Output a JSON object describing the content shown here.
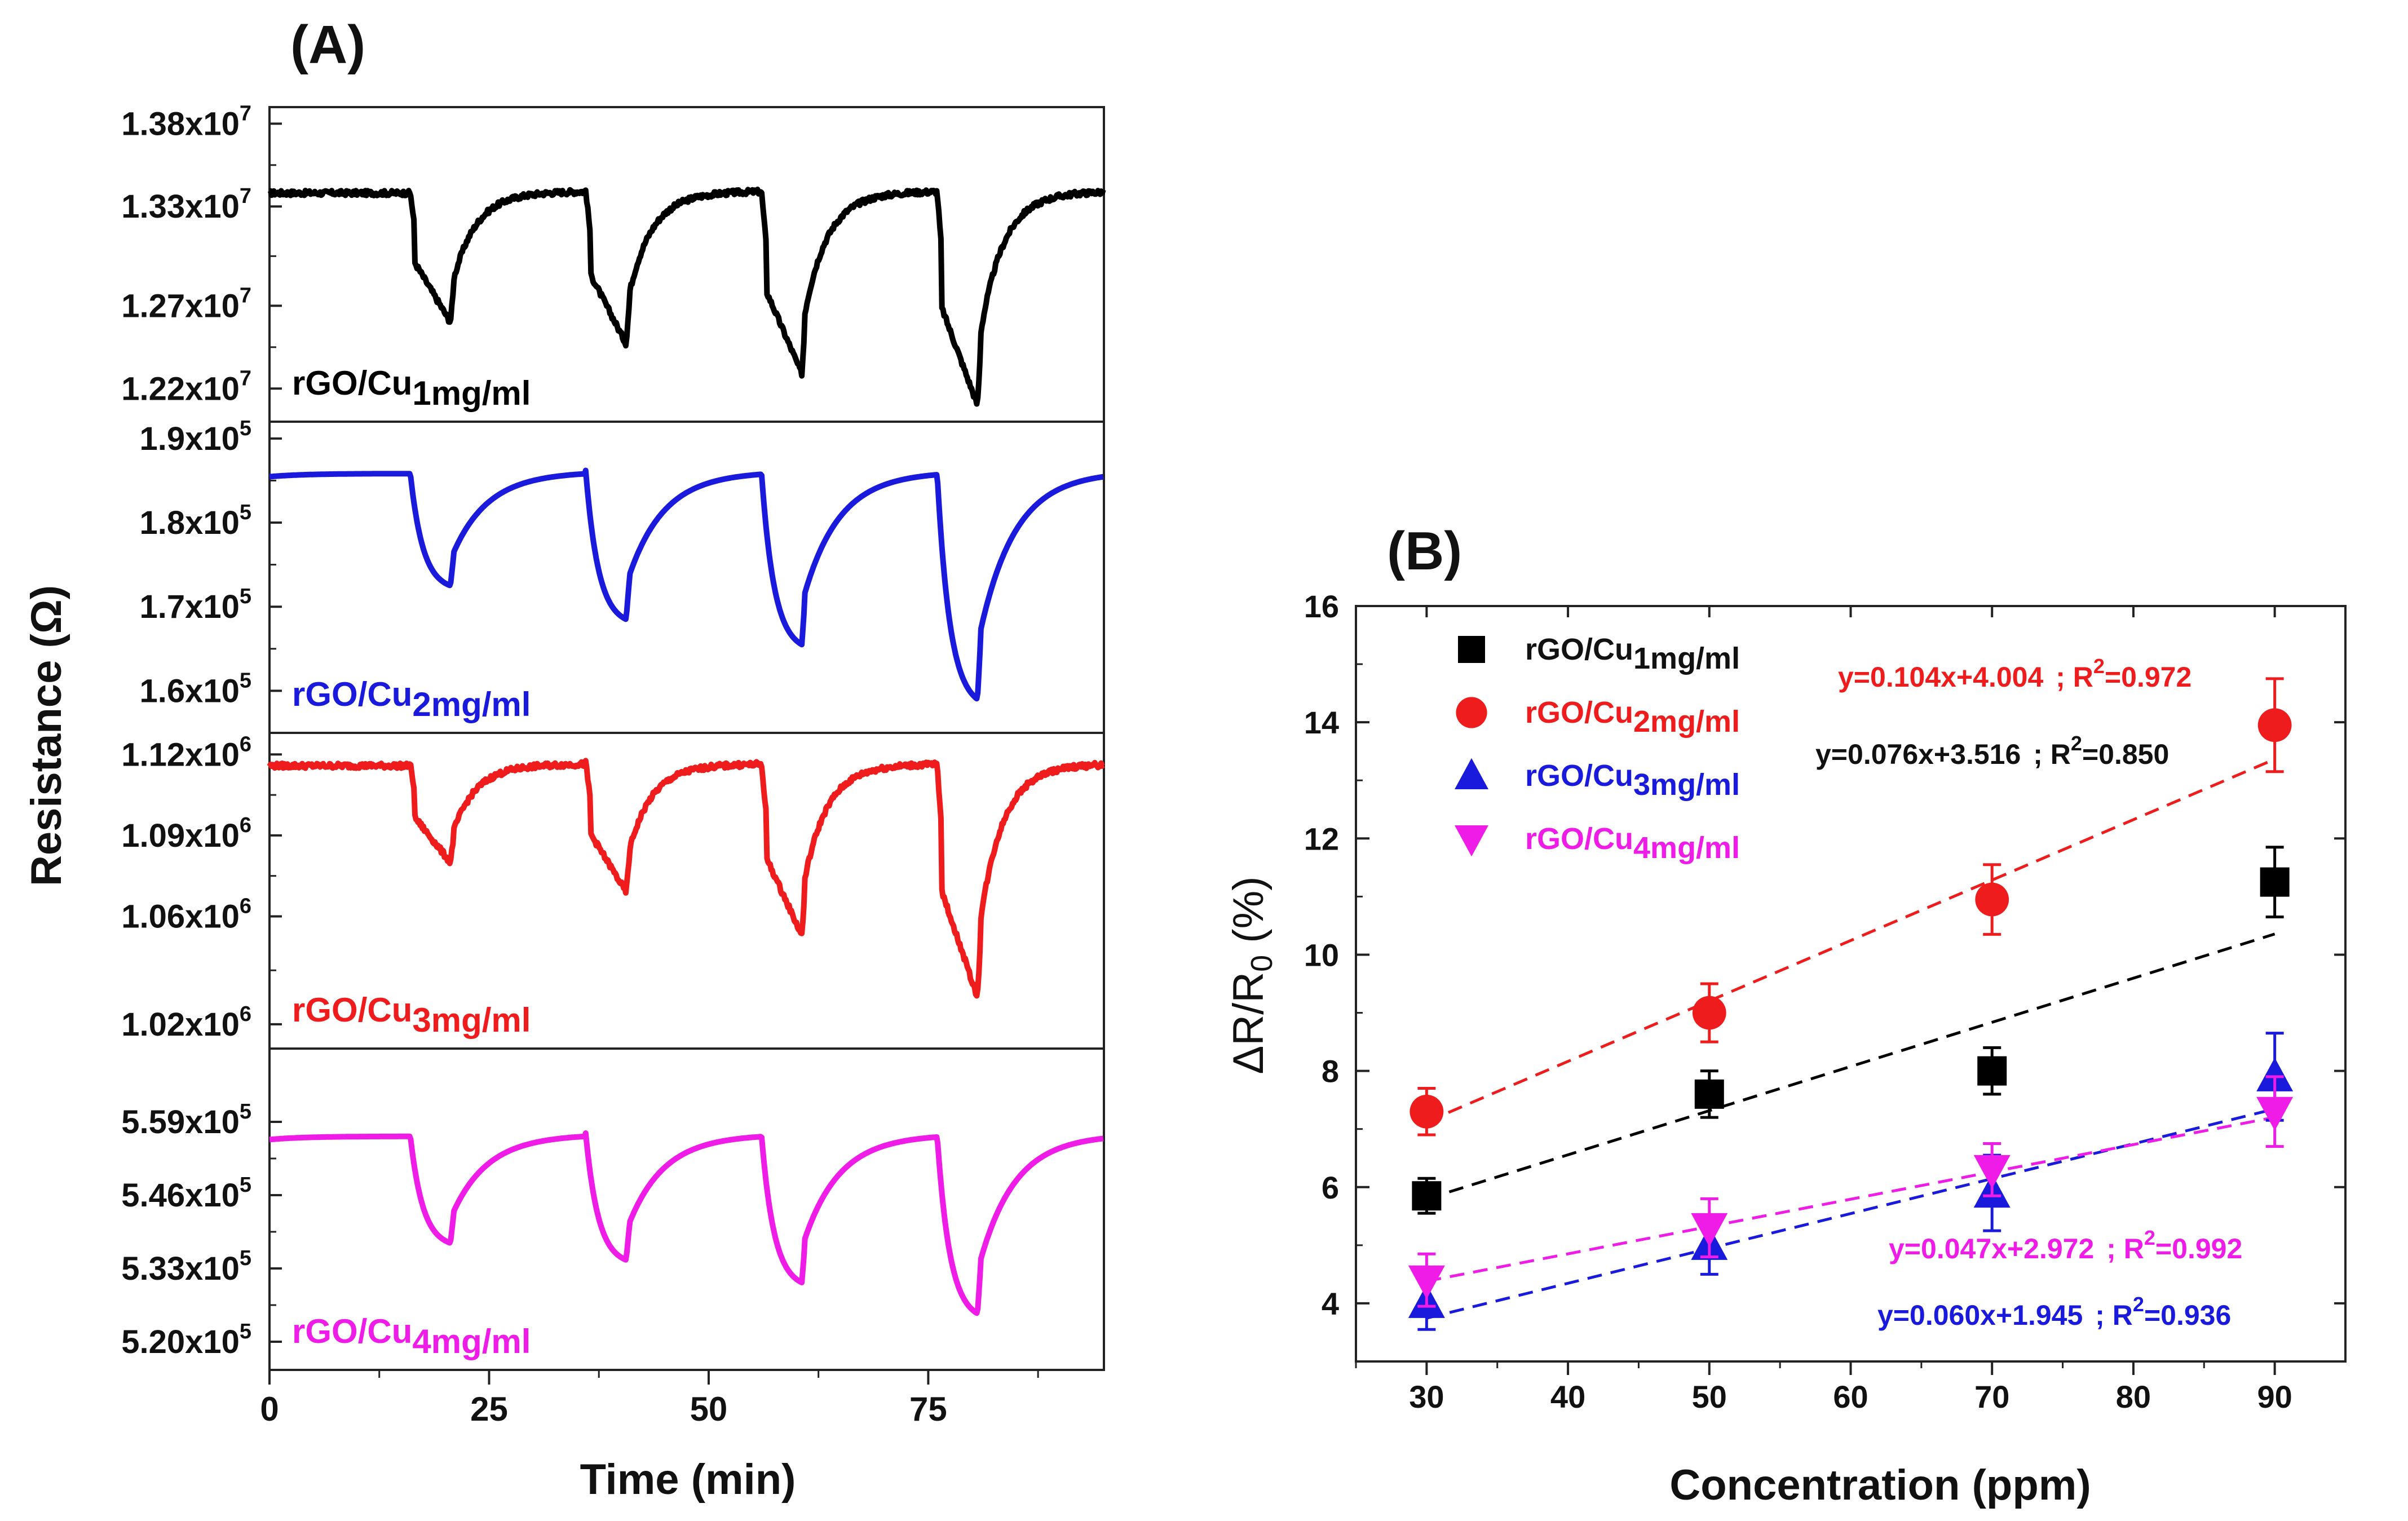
{
  "chart_data": [
    {
      "panel_label": "(A)",
      "type": "line",
      "xlabel": "Time (min)",
      "ylabel": "Resistance (Ω)",
      "xlim": [
        0,
        95
      ],
      "x_ticks": [
        "0",
        "25",
        "50",
        "75"
      ],
      "x_tick_values": [
        0,
        25,
        50,
        75
      ],
      "pulse_starts_min": [
        16,
        36,
        56,
        76
      ],
      "subplots": [
        {
          "name": "rGO/Cu1mg/ml",
          "label_main": "rGO/Cu",
          "label_sub": "1mg/ml",
          "color": "#000000",
          "ylim": [
            12000000,
            13900000
          ],
          "y_ticks": [
            {
              "m": "1.38x10",
              "e": "7",
              "v": 13800000
            },
            {
              "m": "1.33x10",
              "e": "7",
              "v": 13300000
            },
            {
              "m": "1.27x10",
              "e": "7",
              "v": 12700000
            },
            {
              "m": "1.22x10",
              "e": "7",
              "v": 12200000
            }
          ],
          "baseline": 13400000,
          "minima": [
            12600000,
            12470000,
            12290000,
            12100000
          ],
          "noise": true
        },
        {
          "name": "rGO/Cu2mg/ml",
          "label_main": "rGO/Cu",
          "label_sub": "2mg/ml",
          "color": "#1a1adc",
          "ylim": [
            155000,
            192000
          ],
          "y_ticks": [
            {
              "m": "1.9x10",
              "e": "5",
              "v": 190000
            },
            {
              "m": "1.8x10",
              "e": "5",
              "v": 180000
            },
            {
              "m": "1.7x10",
              "e": "5",
              "v": 170000
            },
            {
              "m": "1.6x10",
              "e": "5",
              "v": 160000
            }
          ],
          "baseline": 186200,
          "minima": [
            172500,
            168500,
            165500,
            159000
          ],
          "noise": false
        },
        {
          "name": "rGO/Cu3mg/ml",
          "label_main": "rGO/Cu",
          "label_sub": "3mg/ml",
          "color": "#ee1c1c",
          "ylim": [
            1011000,
            1128000
          ],
          "y_ticks": [
            {
              "m": "1.12x10",
              "e": "6",
              "v": 1120000
            },
            {
              "m": "1.09x10",
              "e": "6",
              "v": 1090000
            },
            {
              "m": "1.06x10",
              "e": "6",
              "v": 1060000
            },
            {
              "m": "1.02x10",
              "e": "6",
              "v": 1020000
            }
          ],
          "baseline": 1117000,
          "minima": [
            1080000,
            1069000,
            1053000,
            1030000
          ],
          "noise": true
        },
        {
          "name": "rGO/Cu4mg/ml",
          "label_main": "rGO/Cu",
          "label_sub": "4mg/ml",
          "color": "#ee1ce6",
          "ylim": [
            515000,
            572000
          ],
          "y_ticks": [
            {
              "m": "5.59x10",
              "e": "5",
              "v": 559000
            },
            {
              "m": "5.46x10",
              "e": "5",
              "v": 546000
            },
            {
              "m": "5.33x10",
              "e": "5",
              "v": 533000
            },
            {
              "m": "5.20x10",
              "e": "5",
              "v": 520000
            }
          ],
          "baseline": 557000,
          "minima": [
            537500,
            534500,
            530500,
            525000
          ],
          "noise": false
        }
      ]
    },
    {
      "panel_label": "(B)",
      "type": "scatter",
      "xlabel": "Concentration (ppm)",
      "ylabel_main": "ΔR/R",
      "ylabel_sub": "0",
      "ylabel_unit": " (%)",
      "xlim": [
        25,
        95
      ],
      "ylim": [
        3,
        16
      ],
      "x_ticks": [
        "30",
        "40",
        "50",
        "60",
        "70",
        "80",
        "90"
      ],
      "y_ticks": [
        "4",
        "6",
        "8",
        "10",
        "12",
        "14",
        "16"
      ],
      "x": [
        30,
        50,
        70,
        90
      ],
      "series": [
        {
          "name": "rGO/Cu1mg/ml",
          "label_main": "rGO/Cu",
          "label_sub": "1mg/ml",
          "marker": "square",
          "color": "#000000",
          "values": [
            5.85,
            7.6,
            8.0,
            11.25
          ],
          "errors": [
            0.3,
            0.4,
            0.4,
            0.6
          ],
          "fit_slope": 0.076,
          "fit_intercept": 3.516
        },
        {
          "name": "rGO/Cu2mg/ml",
          "label_main": "rGO/Cu",
          "label_sub": "2mg/ml",
          "marker": "circle",
          "color": "#ee1c1c",
          "values": [
            7.3,
            9.0,
            10.95,
            13.95
          ],
          "errors": [
            0.4,
            0.5,
            0.6,
            0.8
          ],
          "fit_slope": 0.104,
          "fit_intercept": 4.004
        },
        {
          "name": "rGO/Cu3mg/ml",
          "label_main": "rGO/Cu",
          "label_sub": "3mg/ml",
          "marker": "triangle-up",
          "color": "#1a1adc",
          "values": [
            4.0,
            5.0,
            5.9,
            7.9
          ],
          "errors": [
            0.45,
            0.5,
            0.65,
            0.75
          ],
          "fit_slope": 0.06,
          "fit_intercept": 1.945
        },
        {
          "name": "rGO/Cu4mg/ml",
          "label_main": "rGO/Cu",
          "label_sub": "4mg/ml",
          "marker": "triangle-down",
          "color": "#ee1ce6",
          "values": [
            4.4,
            5.3,
            6.3,
            7.3
          ],
          "errors": [
            0.45,
            0.5,
            0.45,
            0.6
          ],
          "fit_slope": 0.047,
          "fit_intercept": 2.972
        }
      ],
      "equations": [
        {
          "color": "#ee1c1c",
          "eq": "y=0.104x+4.004",
          "sep": "; R",
          "sup": "2",
          "rval": "=0.972"
        },
        {
          "color": "#111111",
          "eq": "y=0.076x+3.516",
          "sep": "; R",
          "sup": "2",
          "rval": "=0.850"
        },
        {
          "color": "#ee1ce6",
          "eq": "y=0.047x+2.972",
          "sep": "; R",
          "sup": "2",
          "rval": "=0.992"
        },
        {
          "color": "#1a1adc",
          "eq": "y=0.060x+1.945",
          "sep": "; R",
          "sup": "2",
          "rval": "=0.936"
        }
      ]
    }
  ]
}
